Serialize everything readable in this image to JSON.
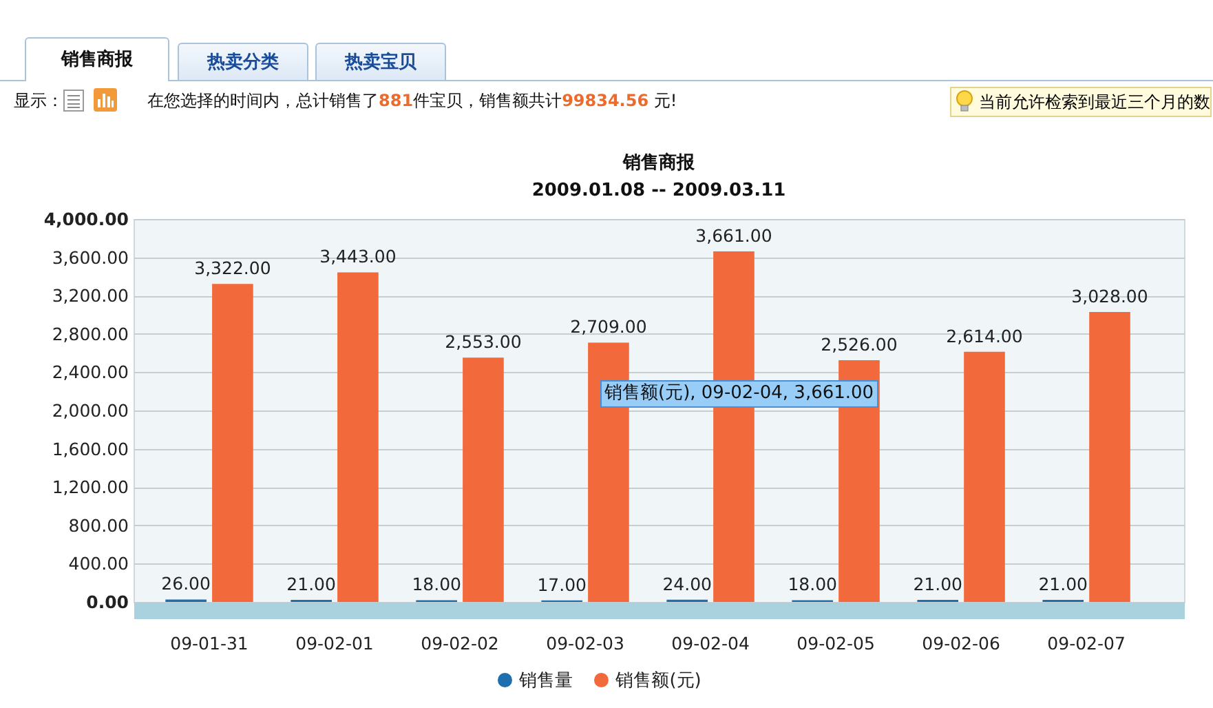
{
  "chart_data": {
    "type": "bar",
    "title": "销售商报",
    "subtitle": "2009.01.08 -- 2009.03.11",
    "categories": [
      "09-01-31",
      "09-02-01",
      "09-02-02",
      "09-02-03",
      "09-02-04",
      "09-02-05",
      "09-02-06",
      "09-02-07"
    ],
    "series": [
      {
        "name": "销售量",
        "color": "#1f6fae",
        "values": [
          26,
          21,
          18,
          17,
          24,
          18,
          21,
          21
        ],
        "value_labels": [
          "26.00",
          "21.00",
          "18.00",
          "17.00",
          "24.00",
          "18.00",
          "21.00",
          "21.00"
        ]
      },
      {
        "name": "销售额(元)",
        "color": "#f26a3b",
        "values": [
          3322,
          3443,
          2553,
          2709,
          3661,
          2526,
          2614,
          3028
        ],
        "value_labels": [
          "3,322.00",
          "3,443.00",
          "2,553.00",
          "2,709.00",
          "3,661.00",
          "2,526.00",
          "2,614.00",
          "3,028.00"
        ]
      }
    ],
    "ylim": [
      0,
      4000
    ],
    "yticks": [
      {
        "value": 0,
        "label": "0.00"
      },
      {
        "value": 400,
        "label": "400.00"
      },
      {
        "value": 800,
        "label": "800.00"
      },
      {
        "value": 1200,
        "label": "1,200.00"
      },
      {
        "value": 1600,
        "label": "1,600.00"
      },
      {
        "value": 2000,
        "label": "2,000.00"
      },
      {
        "value": 2400,
        "label": "2,400.00"
      },
      {
        "value": 2800,
        "label": "2,800.00"
      },
      {
        "value": 3200,
        "label": "3,200.00"
      },
      {
        "value": 3600,
        "label": "3,600.00"
      },
      {
        "value": 4000,
        "label": "4,000.00"
      }
    ],
    "grid": "y",
    "legend": "bottom",
    "annotations": [
      "销售商报",
      "热卖分类",
      "热卖宝贝",
      "显示：",
      "在您选择的时间内，总计销售了881件宝贝，销售额共计99834.56 元!",
      "当前允许检索到最近三个月的数",
      "销售额(元), 09-02-04, 3,661.00"
    ]
  }
}
